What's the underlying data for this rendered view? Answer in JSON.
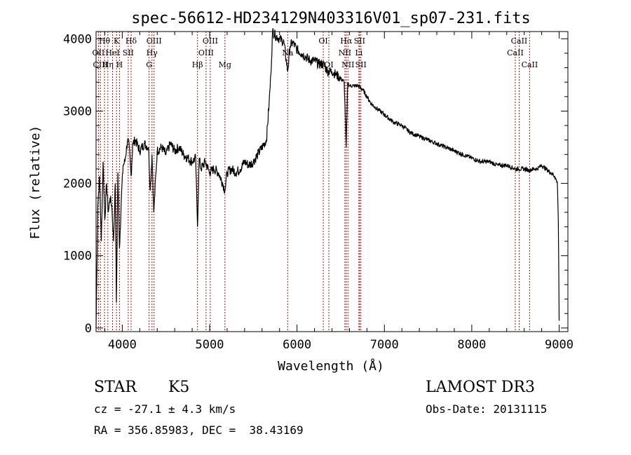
{
  "chart_data": {
    "type": "line",
    "title": "spec-56612-HD234129N403316V01_sp07-231.fits",
    "xlabel": "Wavelength (Å)",
    "ylabel": "Flux (relative)",
    "xlim": [
      3700,
      9100
    ],
    "ylim": [
      -50,
      4100
    ],
    "xticks": [
      4000,
      5000,
      6000,
      7000,
      8000,
      9000
    ],
    "yticks": [
      0,
      1000,
      2000,
      3000,
      4000
    ],
    "xtick_labels": [
      "4000",
      "5000",
      "6000",
      "7000",
      "8000",
      "9000"
    ],
    "ytick_labels": [
      "0",
      "1000",
      "2000",
      "3000",
      "4000"
    ],
    "series": [
      {
        "name": "flux",
        "x": [
          3700,
          3720,
          3740,
          3760,
          3780,
          3800,
          3820,
          3840,
          3860,
          3880,
          3900,
          3920,
          3933,
          3950,
          3968,
          3990,
          4010,
          4030,
          4060,
          4080,
          4101,
          4120,
          4150,
          4200,
          4250,
          4300,
          4320,
          4340,
          4360,
          4400,
          4450,
          4500,
          4550,
          4600,
          4650,
          4700,
          4750,
          4800,
          4840,
          4861,
          4880,
          4900,
          4950,
          5000,
          5050,
          5100,
          5150,
          5175,
          5200,
          5250,
          5300,
          5350,
          5400,
          5450,
          5500,
          5550,
          5600,
          5650,
          5680,
          5700,
          5720,
          5750,
          5800,
          5850,
          5893,
          5920,
          5950,
          6000,
          6050,
          6100,
          6150,
          6200,
          6250,
          6300,
          6350,
          6400,
          6450,
          6500,
          6540,
          6563,
          6580,
          6600,
          6650,
          6700,
          6750,
          6800,
          6850,
          6900,
          6950,
          7000,
          7100,
          7200,
          7300,
          7400,
          7500,
          7600,
          7700,
          7800,
          7900,
          8000,
          8100,
          8200,
          8300,
          8400,
          8500,
          8542,
          8600,
          8662,
          8700,
          8750,
          8800,
          8850,
          8900,
          8950,
          8980,
          8990,
          8995,
          9000
        ],
        "values": [
          0,
          1700,
          2100,
          1200,
          2300,
          1500,
          2000,
          1600,
          1800,
          1700,
          1200,
          2000,
          350,
          2150,
          1100,
          1800,
          2250,
          2300,
          2600,
          2500,
          2100,
          2550,
          2600,
          2450,
          2550,
          2500,
          1900,
          2400,
          1600,
          2450,
          2500,
          2400,
          2550,
          2450,
          2500,
          2400,
          2350,
          2300,
          2350,
          1400,
          2350,
          2200,
          2300,
          2150,
          2200,
          2150,
          2000,
          1900,
          2150,
          2200,
          2150,
          2200,
          2300,
          2250,
          2300,
          2400,
          2500,
          2600,
          3100,
          3500,
          4100,
          4050,
          4000,
          3950,
          3550,
          3900,
          3950,
          3850,
          3800,
          3750,
          3700,
          3700,
          3650,
          3650,
          3550,
          3550,
          3500,
          3450,
          3400,
          2500,
          3400,
          3350,
          3350,
          3350,
          3300,
          3200,
          3100,
          3050,
          3000,
          2950,
          2850,
          2800,
          2700,
          2650,
          2600,
          2550,
          2500,
          2450,
          2400,
          2350,
          2300,
          2300,
          2250,
          2250,
          2200,
          2200,
          2200,
          2180,
          2200,
          2200,
          2250,
          2200,
          2150,
          2100,
          2000,
          1500,
          900,
          100
        ]
      }
    ],
    "lines": [
      {
        "wl": 3727,
        "labels": [
          "OII"
        ],
        "row": 1
      },
      {
        "wl": 3750,
        "labels": [
          "CIII"
        ],
        "row": 2
      },
      {
        "wl": 3797,
        "labels": [
          "Hθ"
        ],
        "row": 0
      },
      {
        "wl": 3835,
        "labels": [
          "Hη"
        ],
        "row": 2
      },
      {
        "wl": 3889,
        "labels": [
          "HeI"
        ],
        "row": 1
      },
      {
        "wl": 3934,
        "labels": [
          "K"
        ],
        "row": 0
      },
      {
        "wl": 3968,
        "labels": [
          "H"
        ],
        "row": 2
      },
      {
        "wl": 4068,
        "labels": [
          "SII"
        ],
        "row": 1
      },
      {
        "wl": 4101,
        "labels": [
          "Hδ"
        ],
        "row": 0
      },
      {
        "wl": 4307,
        "labels": [
          "G"
        ],
        "row": 2
      },
      {
        "wl": 4340,
        "labels": [
          "Hγ"
        ],
        "row": 1
      },
      {
        "wl": 4364,
        "labels": [
          "OIII"
        ],
        "row": 0
      },
      {
        "wl": 4861,
        "labels": [
          "Hβ"
        ],
        "row": 2
      },
      {
        "wl": 4959,
        "labels": [
          "OIII"
        ],
        "row": 1
      },
      {
        "wl": 5007,
        "labels": [
          "OIII"
        ],
        "row": 0
      },
      {
        "wl": 5175,
        "labels": [
          "Mg"
        ],
        "row": 2
      },
      {
        "wl": 5893,
        "labels": [
          "Na"
        ],
        "row": 1
      },
      {
        "wl": 6300,
        "labels": [
          "OI"
        ],
        "row": 0
      },
      {
        "wl": 6364,
        "labels": [
          "OI"
        ],
        "row": 2
      },
      {
        "wl": 6548,
        "labels": [
          "NII"
        ],
        "row": 1
      },
      {
        "wl": 6563,
        "labels": [
          "Hα"
        ],
        "row": 0
      },
      {
        "wl": 6583,
        "labels": [
          "NII"
        ],
        "row": 2
      },
      {
        "wl": 6708,
        "labels": [
          "Li"
        ],
        "row": 1
      },
      {
        "wl": 6716,
        "labels": [
          "SII"
        ],
        "row": 0
      },
      {
        "wl": 6731,
        "labels": [
          "SII"
        ],
        "row": 2
      },
      {
        "wl": 8498,
        "labels": [
          "CaII"
        ],
        "row": 1
      },
      {
        "wl": 8542,
        "labels": [
          "CaII"
        ],
        "row": 0
      },
      {
        "wl": 8662,
        "labels": [
          "CaII"
        ],
        "row": 2
      }
    ],
    "colors": {
      "spectrum": "#000000",
      "line_marker": "#cc0000",
      "axis": "#000000"
    }
  },
  "info": {
    "object_class": "STAR",
    "subclass": "K5",
    "survey": "LAMOST DR3",
    "cz": "cz = -27.1 ± 4.3 km/s",
    "obs_date": "Obs-Date: 20131115",
    "coords": "RA = 356.85983, DEC =  38.43169"
  }
}
